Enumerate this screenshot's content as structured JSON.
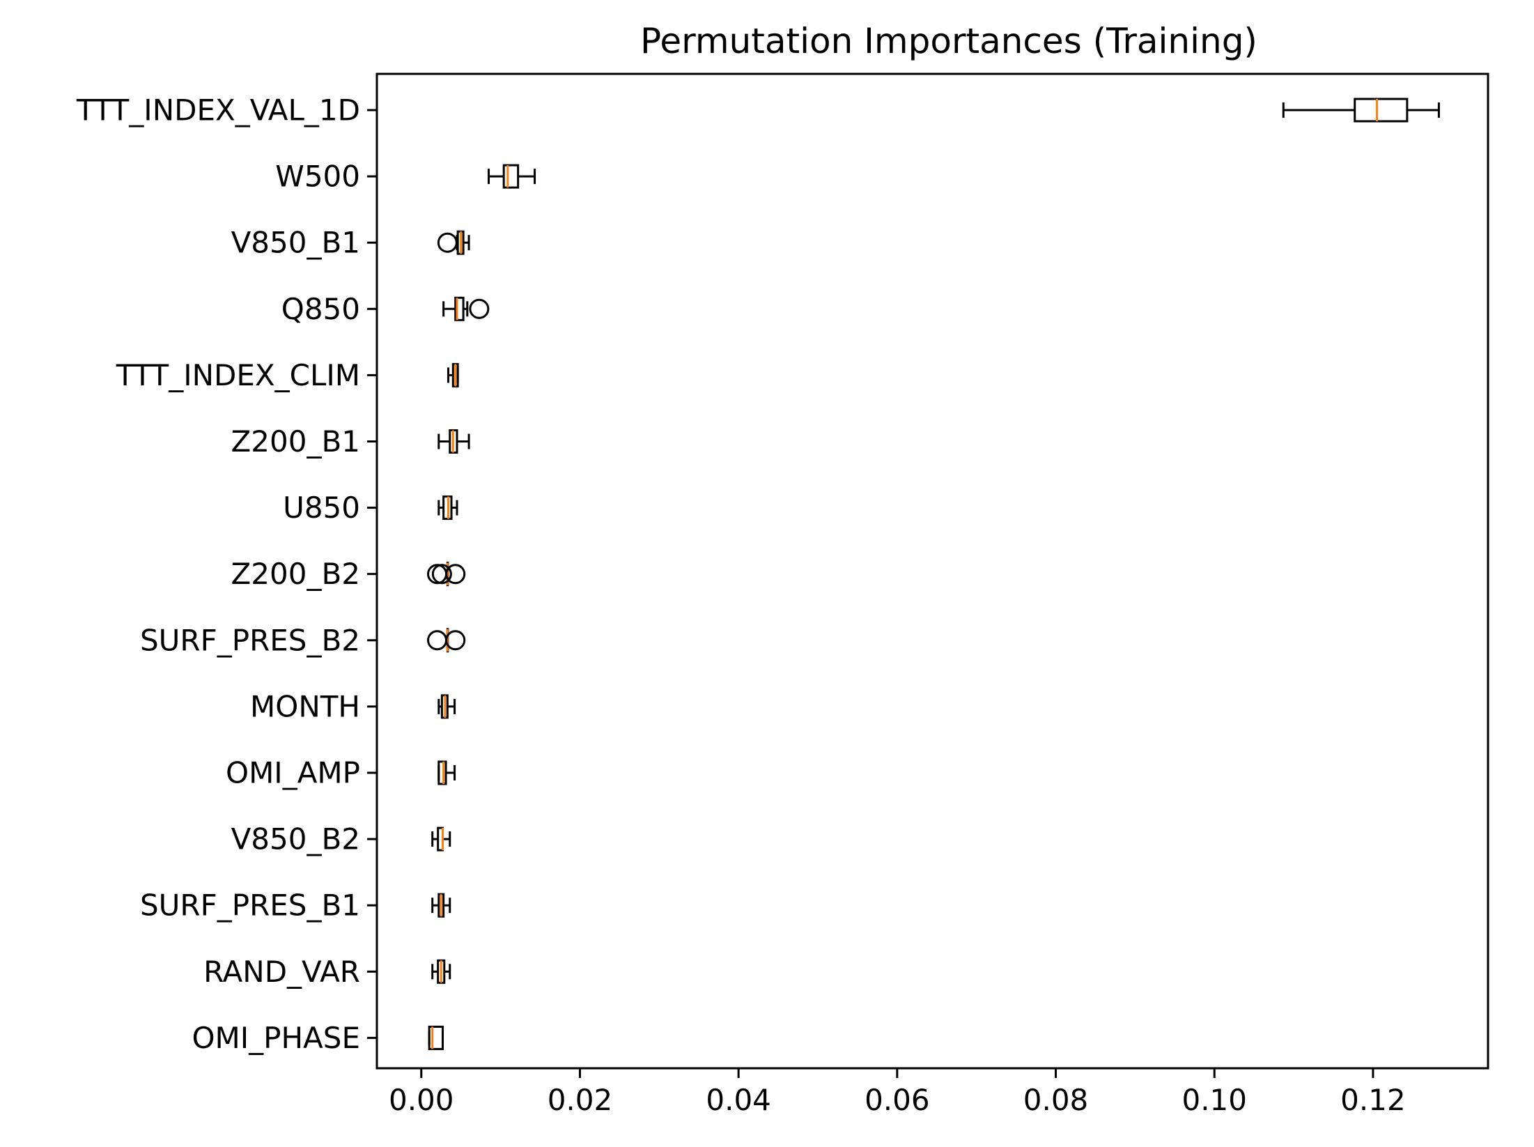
{
  "chart_data": {
    "type": "boxplot",
    "orientation": "horizontal",
    "title": "Permutation Importances (Training)",
    "xlabel": "",
    "ylabel": "",
    "xlim": [
      -0.0056,
      0.1345
    ],
    "grid": false,
    "legend": "none",
    "x_ticks": [
      {
        "value": 0.0,
        "label": "0.00"
      },
      {
        "value": 0.02,
        "label": "0.02"
      },
      {
        "value": 0.04,
        "label": "0.04"
      },
      {
        "value": 0.06,
        "label": "0.06"
      },
      {
        "value": 0.08,
        "label": "0.08"
      },
      {
        "value": 0.1,
        "label": "0.10"
      },
      {
        "value": 0.12,
        "label": "0.12"
      }
    ],
    "colors": {
      "box": "#000000",
      "median": "#ff7f0e",
      "axis": "#000000"
    },
    "series": [
      {
        "name": "TTT_INDEX_VAL_1D",
        "whisker_low": 0.1087,
        "q1": 0.1177,
        "median": 0.1205,
        "q3": 0.1243,
        "whisker_high": 0.1283,
        "outliers": []
      },
      {
        "name": "W500",
        "whisker_low": 0.0085,
        "q1": 0.0104,
        "median": 0.0109,
        "q3": 0.0122,
        "whisker_high": 0.0143,
        "outliers": []
      },
      {
        "name": "V850_B1",
        "whisker_low": 0.0045,
        "q1": 0.0046,
        "median": 0.005,
        "q3": 0.0053,
        "whisker_high": 0.006,
        "outliers": [
          0.0033
        ]
      },
      {
        "name": "Q850",
        "whisker_low": 0.0028,
        "q1": 0.0043,
        "median": 0.0045,
        "q3": 0.0053,
        "whisker_high": 0.0058,
        "outliers": [
          0.0073
        ]
      },
      {
        "name": "TTT_INDEX_CLIM",
        "whisker_low": 0.0034,
        "q1": 0.004,
        "median": 0.0043,
        "q3": 0.0046,
        "whisker_high": 0.0046,
        "outliers": []
      },
      {
        "name": "Z200_B1",
        "whisker_low": 0.0022,
        "q1": 0.0036,
        "median": 0.004,
        "q3": 0.0045,
        "whisker_high": 0.006,
        "outliers": []
      },
      {
        "name": "U850",
        "whisker_low": 0.0022,
        "q1": 0.0028,
        "median": 0.0034,
        "q3": 0.0038,
        "whisker_high": 0.0045,
        "outliers": []
      },
      {
        "name": "Z200_B2",
        "whisker_low": 0.0033,
        "q1": 0.0033,
        "median": 0.0033,
        "q3": 0.0033,
        "whisker_high": 0.0033,
        "outliers": [
          0.002,
          0.0026,
          0.0043
        ]
      },
      {
        "name": "SURF_PRES_B2",
        "whisker_low": 0.0033,
        "q1": 0.0033,
        "median": 0.0033,
        "q3": 0.0033,
        "whisker_high": 0.0033,
        "outliers": [
          0.002,
          0.0043
        ]
      },
      {
        "name": "MONTH",
        "whisker_low": 0.0022,
        "q1": 0.0026,
        "median": 0.003,
        "q3": 0.0033,
        "whisker_high": 0.0042,
        "outliers": []
      },
      {
        "name": "OMI_AMP",
        "whisker_low": 0.0022,
        "q1": 0.0022,
        "median": 0.0028,
        "q3": 0.0031,
        "whisker_high": 0.0042,
        "outliers": []
      },
      {
        "name": "V850_B2",
        "whisker_low": 0.0014,
        "q1": 0.0021,
        "median": 0.0027,
        "q3": 0.0027,
        "whisker_high": 0.0036,
        "outliers": []
      },
      {
        "name": "SURF_PRES_B1",
        "whisker_low": 0.0014,
        "q1": 0.0022,
        "median": 0.0025,
        "q3": 0.0028,
        "whisker_high": 0.0036,
        "outliers": []
      },
      {
        "name": "RAND_VAR",
        "whisker_low": 0.0014,
        "q1": 0.0021,
        "median": 0.0025,
        "q3": 0.0029,
        "whisker_high": 0.0036,
        "outliers": []
      },
      {
        "name": "OMI_PHASE",
        "whisker_low": 0.001,
        "q1": 0.001,
        "median": 0.0014,
        "q3": 0.0027,
        "whisker_high": 0.0027,
        "outliers": []
      }
    ]
  }
}
